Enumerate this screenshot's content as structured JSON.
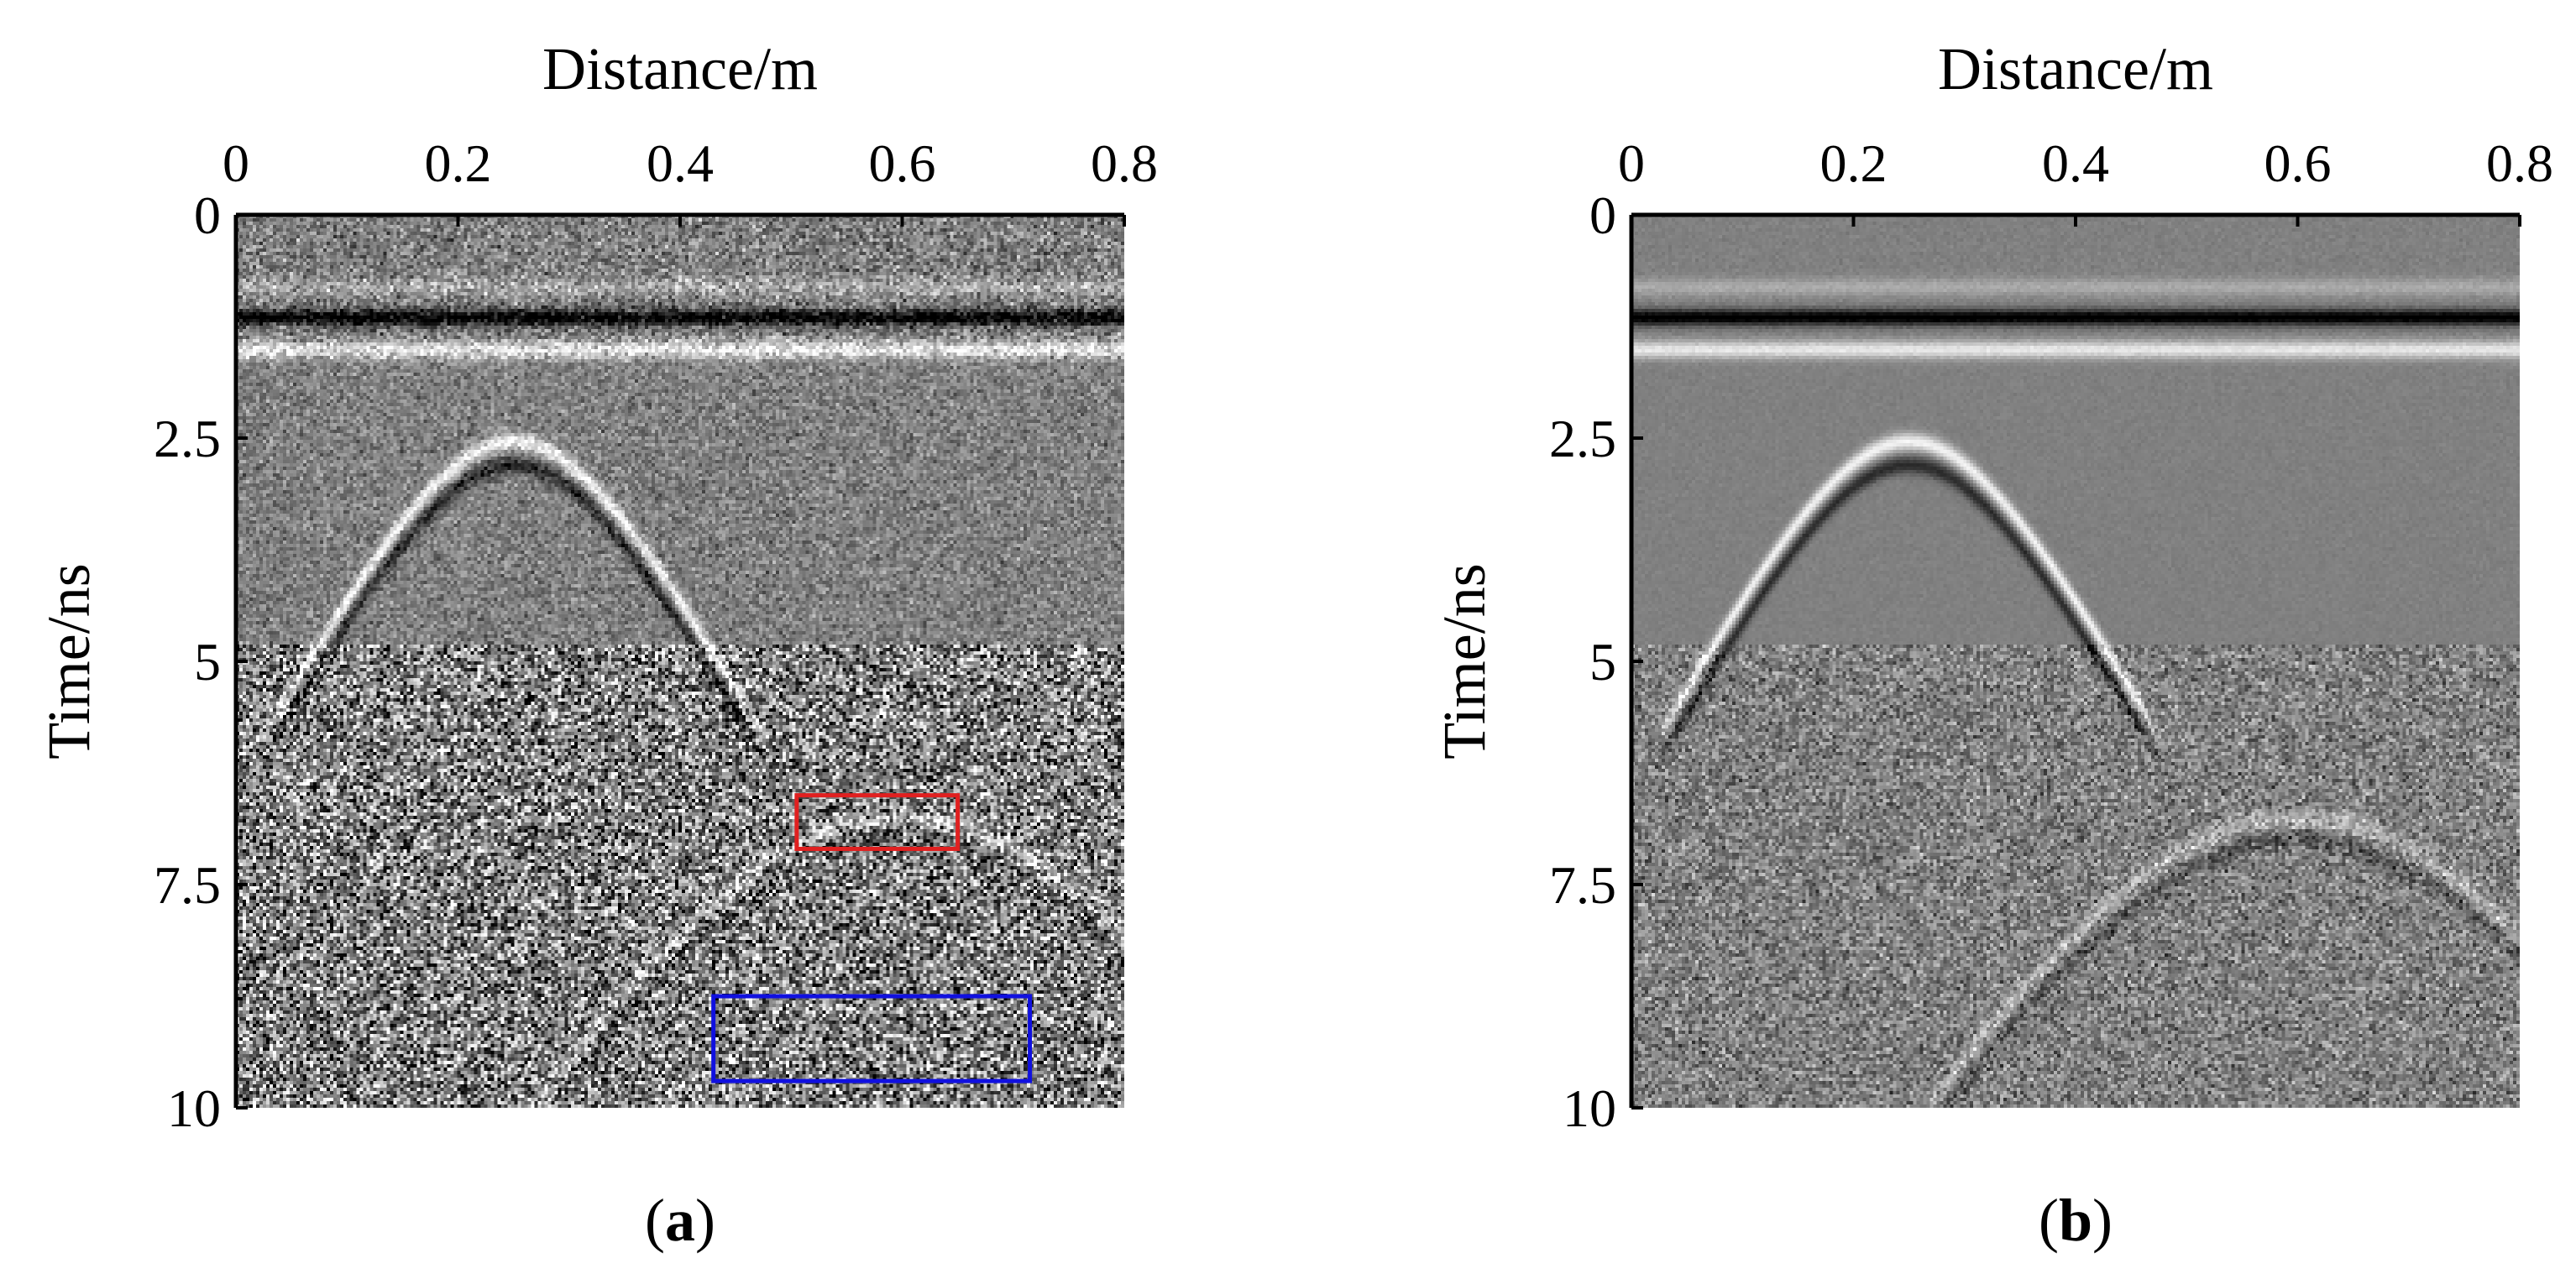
{
  "chart_data": [
    {
      "type": "heatmap",
      "panel_label": {
        "open": "(",
        "letter": "a",
        "close": ")"
      },
      "xlabel": "Distance/m",
      "ylabel": "Time/ns",
      "xlim": [
        0,
        0.8
      ],
      "ylim": [
        10,
        0
      ],
      "x_ticks": [
        "0",
        "0.2",
        "0.4",
        "0.6",
        "0.8"
      ],
      "y_ticks": [
        "0",
        "2.5",
        "5",
        "7.5",
        "10"
      ],
      "x_axis_position": "top",
      "colormap": "gray",
      "noise_level": "high",
      "direct_wave_time_ns": 1.15,
      "hyperbolas": [
        {
          "apex_distance_m": 0.25,
          "apex_time_ns": 2.6,
          "velocity_m_per_ns": 0.085,
          "end_time_ns": 5.5,
          "strength": 1.0
        },
        {
          "apex_distance_m": 0.6,
          "apex_time_ns": 6.8,
          "velocity_m_per_ns": 0.09,
          "end_time_ns": 10,
          "strength": 0.45
        }
      ],
      "annotations": [
        {
          "shape": "rectangle",
          "color": "#e02020",
          "x_range_m": [
            0.505,
            0.65
          ],
          "time_range_ns": [
            6.5,
            7.1
          ]
        },
        {
          "shape": "rectangle",
          "color": "#1010e0",
          "x_range_m": [
            0.43,
            0.715
          ],
          "time_range_ns": [
            8.75,
            9.7
          ]
        }
      ]
    },
    {
      "type": "heatmap",
      "panel_label": {
        "open": "(",
        "letter": "b",
        "close": ")"
      },
      "xlabel": "Distance/m",
      "ylabel": "Time/ns",
      "xlim": [
        0,
        0.8
      ],
      "ylim": [
        10,
        0
      ],
      "x_ticks": [
        "0",
        "0.2",
        "0.4",
        "0.6",
        "0.8"
      ],
      "y_ticks": [
        "0",
        "2.5",
        "5",
        "7.5",
        "10"
      ],
      "x_axis_position": "top",
      "colormap": "gray",
      "noise_level": "reduced",
      "direct_wave_time_ns": 1.15,
      "hyperbolas": [
        {
          "apex_distance_m": 0.25,
          "apex_time_ns": 2.6,
          "velocity_m_per_ns": 0.085,
          "end_time_ns": 5.5,
          "strength": 1.0
        },
        {
          "apex_distance_m": 0.6,
          "apex_time_ns": 6.8,
          "velocity_m_per_ns": 0.09,
          "end_time_ns": 10,
          "strength": 0.45
        }
      ],
      "annotations": []
    }
  ]
}
